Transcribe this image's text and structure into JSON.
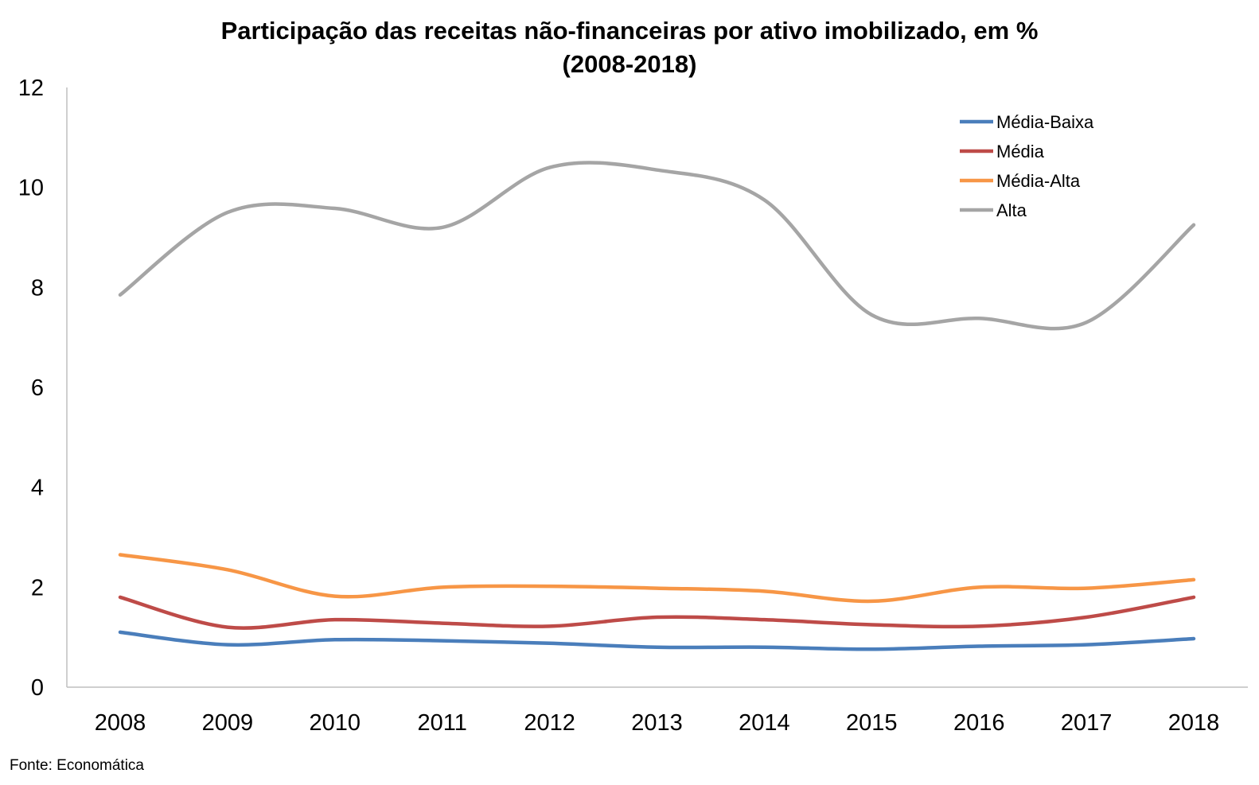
{
  "chart_data": {
    "type": "line",
    "title": "Participação das receitas não-financeiras por ativo imobilizado, em %",
    "subtitle": "(2008-2018)",
    "xlabel": "",
    "ylabel": "",
    "categories": [
      "2008",
      "2009",
      "2010",
      "2011",
      "2012",
      "2013",
      "2014",
      "2015",
      "2016",
      "2017",
      "2018"
    ],
    "ylim": [
      0,
      12
    ],
    "yticks": [
      0,
      2,
      4,
      6,
      8,
      10,
      12
    ],
    "grid": false,
    "legend_position": "top-right",
    "smooth": true,
    "series": [
      {
        "name": "Média-Baixa",
        "color": "#4a7ebb",
        "values": [
          1.1,
          0.85,
          0.95,
          0.93,
          0.88,
          0.8,
          0.8,
          0.76,
          0.82,
          0.85,
          0.97
        ]
      },
      {
        "name": "Média",
        "color": "#be4b48",
        "values": [
          1.8,
          1.2,
          1.35,
          1.28,
          1.22,
          1.4,
          1.35,
          1.25,
          1.22,
          1.4,
          1.8
        ]
      },
      {
        "name": "Média-Alta",
        "color": "#f79646",
        "values": [
          2.65,
          2.35,
          1.82,
          2.0,
          2.02,
          1.98,
          1.92,
          1.72,
          2.0,
          1.98,
          2.15
        ]
      },
      {
        "name": "Alta",
        "color": "#a5a5a5",
        "values": [
          7.85,
          9.5,
          9.58,
          9.2,
          10.4,
          10.35,
          9.75,
          7.45,
          7.38,
          7.3,
          9.25
        ]
      }
    ]
  },
  "source": "Fonte: Economática"
}
